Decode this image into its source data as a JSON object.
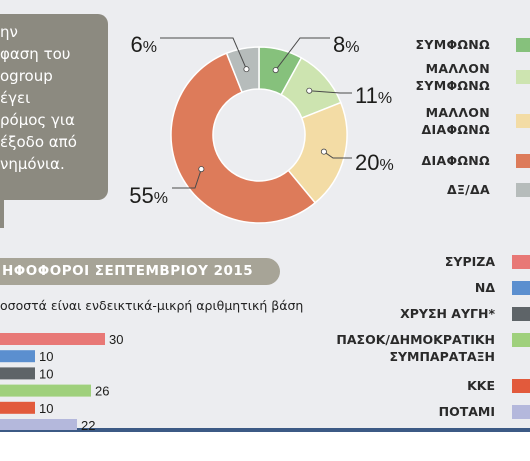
{
  "callout": {
    "lines": [
      "ην",
      "φαση του",
      "ogroup",
      "έγει",
      "ρόμος για",
      "έξοδο από",
      "νημόνια."
    ]
  },
  "colors": {
    "agree": "#86c17c",
    "rather_agree": "#cde4b0",
    "rather_disagree": "#f3dca5",
    "disagree": "#dd7b5a",
    "dk": "#b6bcbb",
    "syriza": "#e87876",
    "nd": "#5b8fcf",
    "golden_dawn": "#5e6468",
    "pasok": "#9fd07c",
    "kke": "#e25a3c",
    "potami": "#b4b8dc"
  },
  "donut_legend": [
    {
      "lines": [
        "ΣΥΜΦΩΝΩ"
      ]
    },
    {
      "lines": [
        "ΜΑΛΛΟΝ",
        "ΣΥΜΦΩΝΩ"
      ]
    },
    {
      "lines": [
        "ΜΑΛΛΟΝ",
        "ΔΙΑΦΩΝΩ"
      ]
    },
    {
      "lines": [
        "ΔΙΑΦΩΝΩ"
      ]
    },
    {
      "lines": [
        "ΔΞ/ΔΑ"
      ]
    }
  ],
  "bars_section": {
    "title": "ΗΦΟΦΟΡΟΙ ΣΕΠΤΕΜΒΡΙΟΥ 2015",
    "note": "οσοστά είναι ενδεικτικά-μικρή αριθμητική βάση"
  },
  "party_legend": [
    {
      "lines": [
        "ΣΥΡΙΖΑ"
      ]
    },
    {
      "lines": [
        "ΝΔ"
      ]
    },
    {
      "lines": [
        "ΧΡΥΣΗ ΑΥΓΗ*"
      ]
    },
    {
      "lines": [
        "ΠΑΣΟΚ/ΔΗΜΟΚΡΑΤΙΚΗ",
        "ΣΥΜΠΑΡΑΤΑΞΗ"
      ]
    },
    {
      "lines": [
        "ΚΚΕ"
      ]
    },
    {
      "lines": [
        "ΠΟΤΑΜΙ"
      ]
    }
  ],
  "chart_data": [
    {
      "type": "pie",
      "categories": [
        "ΣΥΜΦΩΝΩ",
        "ΜΑΛΛΟΝ ΣΥΜΦΩΝΩ",
        "ΜΑΛΛΟΝ ΔΙΑΦΩΝΩ",
        "ΔΙΑΦΩΝΩ",
        "ΔΞ/ΔΑ"
      ],
      "values": [
        8,
        11,
        20,
        55,
        6
      ],
      "labels": [
        "8%",
        "11%",
        "20%",
        "55%",
        "6%"
      ]
    },
    {
      "type": "bar",
      "orientation": "horizontal",
      "categories": [
        "ΣΥΡΙΖΑ",
        "ΝΔ",
        "ΧΡΥΣΗ ΑΥΓΗ*",
        "ΠΑΣΟΚ/ΔΗΜΟΚΡΑΤΙΚΗ ΣΥΜΠΑΡΑΤΑΞΗ",
        "ΚΚΕ",
        "ΠΟΤΑΜΙ"
      ],
      "values": [
        30,
        10,
        10,
        26,
        10,
        22
      ]
    }
  ]
}
